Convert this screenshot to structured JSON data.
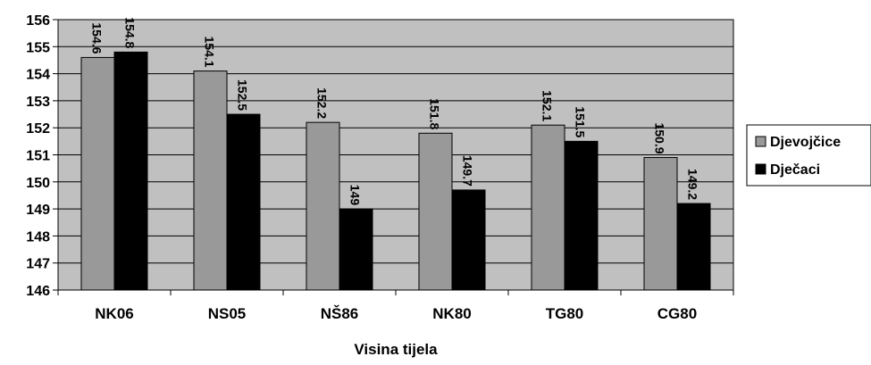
{
  "chart_data": {
    "type": "bar",
    "title": "",
    "xlabel": "Visina tijela",
    "ylabel": "",
    "ylim": [
      146,
      156
    ],
    "y_ticks": [
      146,
      147,
      148,
      149,
      150,
      151,
      152,
      153,
      154,
      155,
      156
    ],
    "categories": [
      "NK06",
      "NS05",
      "NŠ86",
      "NK80",
      "TG80",
      "CG80"
    ],
    "series": [
      {
        "name": "Djevojčice",
        "values": [
          154.6,
          154.1,
          152.2,
          151.8,
          152.1,
          150.9
        ],
        "color": "#999999"
      },
      {
        "name": "Dječaci",
        "values": [
          154.8,
          152.5,
          149,
          149.7,
          151.5,
          149.2
        ],
        "color": "#000000"
      }
    ],
    "data_labels": [
      [
        "154.6",
        "154.1",
        "152.2",
        "151.8",
        "152.1",
        "150.9"
      ],
      [
        "154.8",
        "152.5",
        "149",
        "149.7",
        "151.5",
        "149.2"
      ]
    ],
    "grid": true,
    "plot_background": "#c0c0c0",
    "legend_position": "right"
  }
}
